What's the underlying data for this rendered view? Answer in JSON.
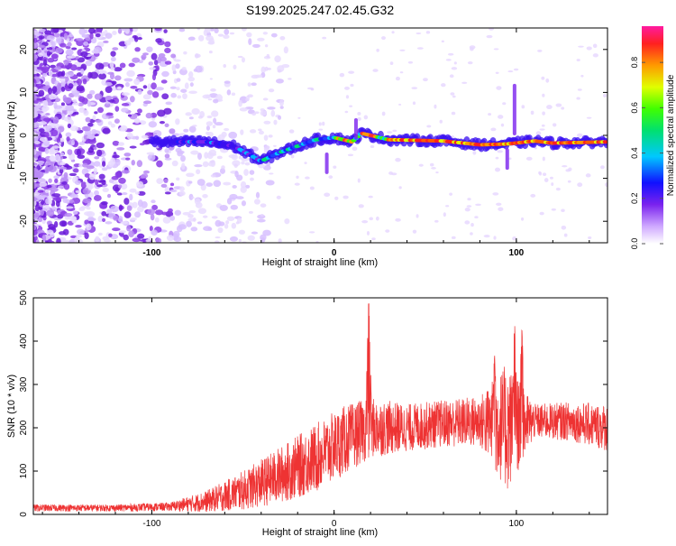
{
  "title": "S199.2025.247.02.45.G32",
  "chart_data": [
    {
      "type": "heatmap",
      "xlabel": "Height of straight line (km)",
      "ylabel": "Frequency (Hz)",
      "xlim": [
        -165,
        150
      ],
      "ylim": [
        -25,
        25
      ],
      "x_ticks": [
        -100,
        0,
        100
      ],
      "y_ticks": [
        -20,
        -10,
        0,
        10,
        20
      ],
      "colorbar": {
        "label": "Normalized spectral amplitude",
        "range": [
          0,
          0.96
        ],
        "ticks": [
          0.0,
          0.2,
          0.4,
          0.6,
          0.8
        ]
      },
      "ridge": {
        "description_points": [
          {
            "x": -95,
            "y": -1.5
          },
          {
            "x": -70,
            "y": -1.5
          },
          {
            "x": -55,
            "y": -2.5
          },
          {
            "x": -40,
            "y": -6.0
          },
          {
            "x": -30,
            "y": -4.0
          },
          {
            "x": -20,
            "y": -2.5
          },
          {
            "x": -10,
            "y": -1.0
          },
          {
            "x": 0,
            "y": -0.5
          },
          {
            "x": 10,
            "y": -1.5
          },
          {
            "x": 15,
            "y": 0.5
          },
          {
            "x": 30,
            "y": -1.0
          },
          {
            "x": 60,
            "y": -1.3
          },
          {
            "x": 80,
            "y": -2.2
          },
          {
            "x": 95,
            "y": -2.0
          },
          {
            "x": 110,
            "y": -1.3
          },
          {
            "x": 120,
            "y": -1.8
          },
          {
            "x": 150,
            "y": -1.5
          }
        ]
      }
    },
    {
      "type": "line",
      "xlabel": "Height of straight line (km)",
      "ylabel": "SNR (10 * v/v)",
      "xlim": [
        -165,
        150
      ],
      "ylim": [
        0,
        500
      ],
      "x_ticks": [
        -100,
        0,
        100
      ],
      "y_ticks": [
        0,
        100,
        200,
        300,
        400,
        500
      ],
      "series_color": "#ee3333",
      "envelope": [
        {
          "x": -165,
          "mean": 15,
          "spread": 8
        },
        {
          "x": -120,
          "mean": 15,
          "spread": 8
        },
        {
          "x": -90,
          "mean": 18,
          "spread": 10
        },
        {
          "x": -70,
          "mean": 30,
          "spread": 25
        },
        {
          "x": -50,
          "mean": 55,
          "spread": 45
        },
        {
          "x": -30,
          "mean": 90,
          "spread": 65
        },
        {
          "x": -10,
          "mean": 130,
          "spread": 80
        },
        {
          "x": 5,
          "mean": 170,
          "spread": 80
        },
        {
          "x": 20,
          "mean": 200,
          "spread": 70
        },
        {
          "x": 40,
          "mean": 200,
          "spread": 55
        },
        {
          "x": 60,
          "mean": 210,
          "spread": 55
        },
        {
          "x": 80,
          "mean": 215,
          "spread": 60
        },
        {
          "x": 95,
          "mean": 200,
          "spread": 150
        },
        {
          "x": 110,
          "mean": 215,
          "spread": 40
        },
        {
          "x": 130,
          "mean": 215,
          "spread": 45
        },
        {
          "x": 150,
          "mean": 200,
          "spread": 55
        }
      ],
      "peaks": [
        {
          "x": 19,
          "y": 500
        },
        {
          "x": 88,
          "y": 375
        },
        {
          "x": 99,
          "y": 440
        },
        {
          "x": 103,
          "y": 440
        }
      ]
    }
  ],
  "colors": {
    "line": "#ee3333",
    "frame": "#000000"
  }
}
